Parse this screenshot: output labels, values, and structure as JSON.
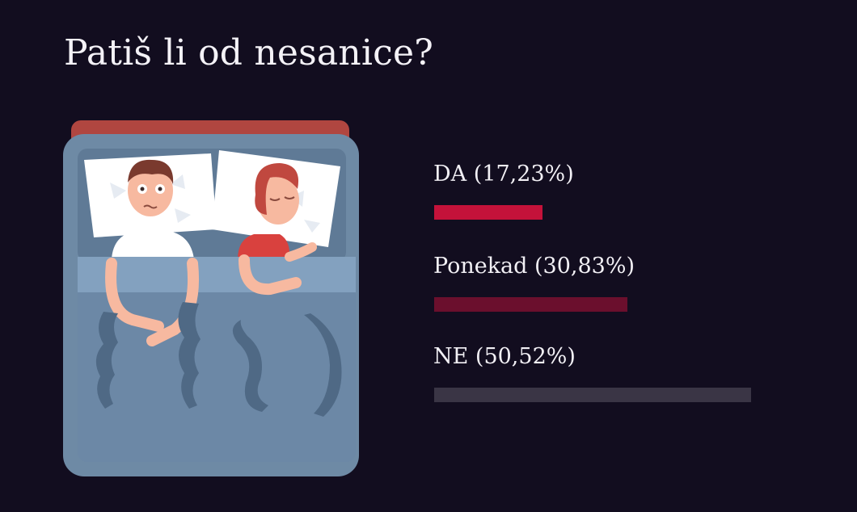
{
  "header": {
    "title": "Patiš li od nesanice?"
  },
  "chart_data": {
    "type": "bar",
    "orientation": "horizontal",
    "title": "Patiš li od nesanice?",
    "categories": [
      "DA",
      "Ponekad",
      "NE"
    ],
    "values": [
      17.23,
      30.83,
      50.52
    ],
    "labels": [
      "DA (17,23%)",
      "Ponekad (30,83%)",
      "NE (50,52%)"
    ],
    "colors": [
      "#c4123a",
      "#6b0f2d",
      "#3a3545"
    ],
    "xlim": [
      0,
      57
    ],
    "grid": false,
    "legend": "none"
  },
  "illustration": {
    "name": "couple-in-bed-illustration"
  }
}
